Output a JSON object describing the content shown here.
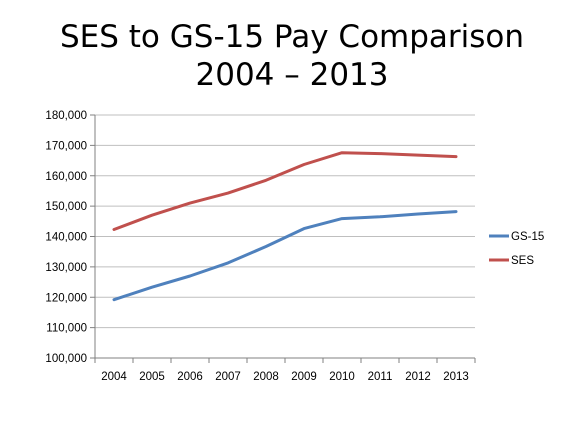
{
  "chart_data": {
    "type": "line",
    "title": "SES to GS-15 Pay Comparison",
    "subtitle": "2004 – 2013",
    "xlabel": "",
    "ylabel": "",
    "x": [
      "2004",
      "2005",
      "2006",
      "2007",
      "2008",
      "2009",
      "2010",
      "2011",
      "2012",
      "2013"
    ],
    "ylim": [
      100000,
      180000
    ],
    "yticks": [
      100000,
      110000,
      120000,
      130000,
      140000,
      150000,
      160000,
      170000,
      180000
    ],
    "ytick_labels": [
      "100,000",
      "110,000",
      "120,000",
      "130,000",
      "140,000",
      "150,000",
      "160,000",
      "170,000",
      "180,000"
    ],
    "grid": true,
    "legend_position": "right",
    "series": [
      {
        "name": "GS-15",
        "color": "#4f81bd",
        "values": [
          119200,
          123300,
          127000,
          131300,
          136700,
          142600,
          145900,
          146500,
          147400,
          148200
        ]
      },
      {
        "name": "SES",
        "color": "#c0504d",
        "values": [
          142300,
          147000,
          151000,
          154300,
          158500,
          163700,
          167600,
          167300,
          166800,
          166300
        ]
      }
    ],
    "grid_color": "#bfbfbf",
    "axis_color": "#808080"
  }
}
